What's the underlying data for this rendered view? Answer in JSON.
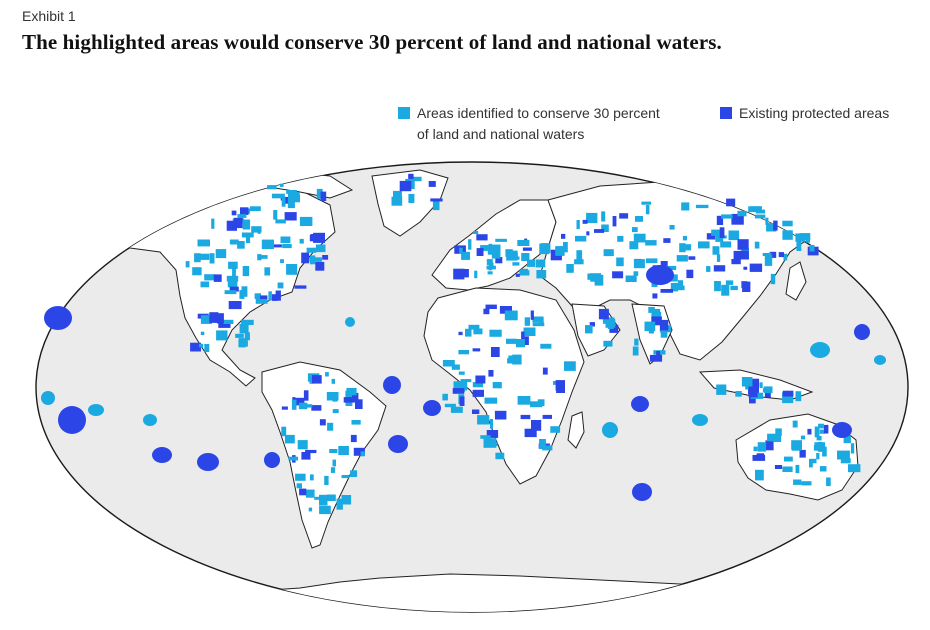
{
  "header": {
    "exhibit": "Exhibit 1",
    "title": "The highlighted areas would conserve 30 percent of land and national waters."
  },
  "legend": {
    "identified": {
      "line1": "Areas identified to conserve 30 percent",
      "line2": "of land and national waters",
      "color": "#1aa9e0"
    },
    "existing": {
      "label": "Existing protected areas",
      "color": "#2b45e6"
    }
  },
  "map": {
    "ocean_color": "#ebebeb",
    "land_color": "#ffffff",
    "projection": "Robinson"
  }
}
